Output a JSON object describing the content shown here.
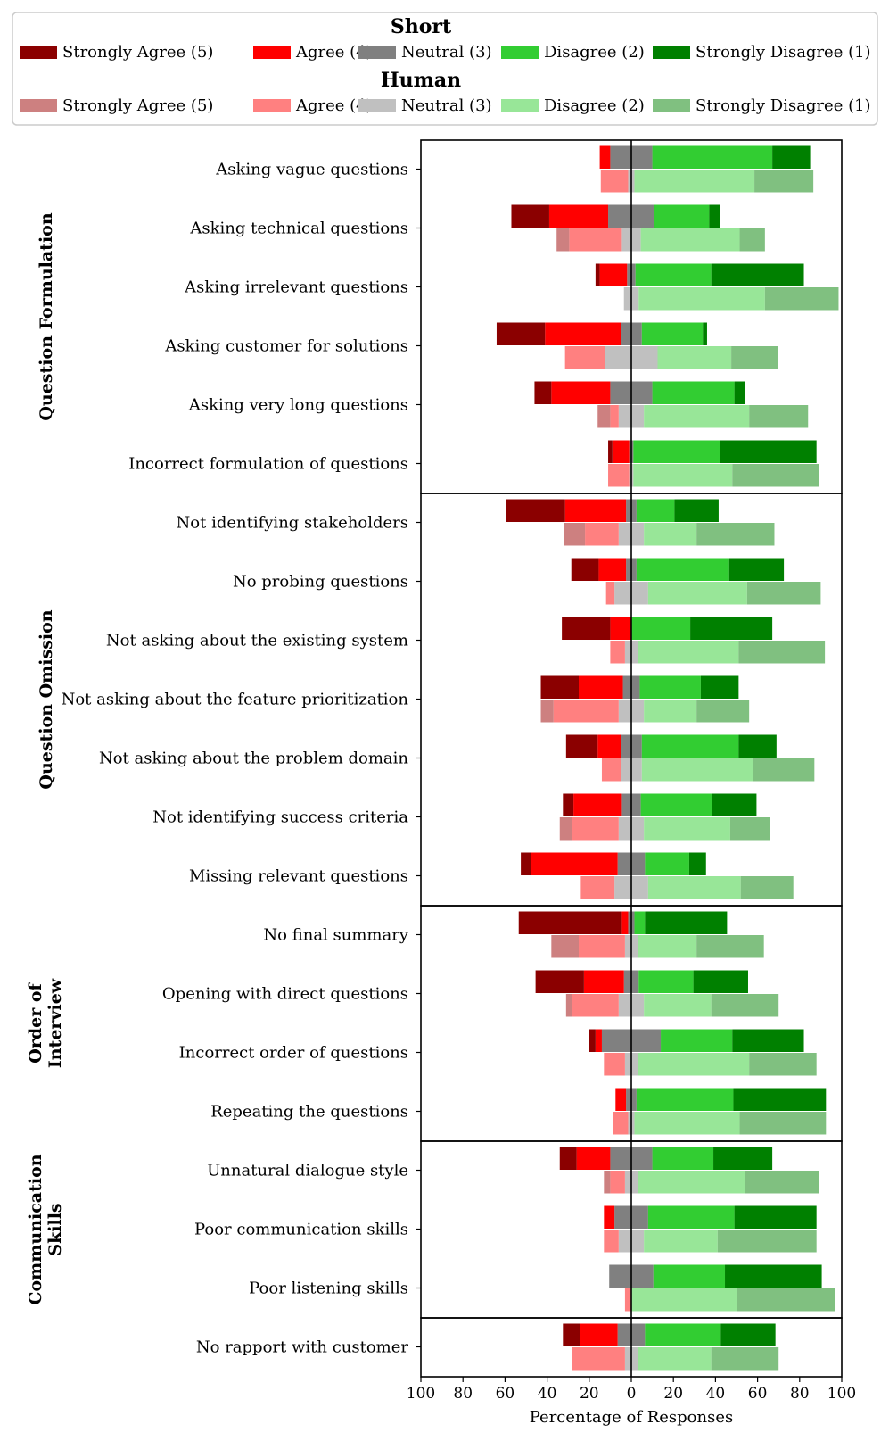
{
  "chart_data": {
    "type": "bar",
    "subtype": "diverging-stacked-horizontal",
    "xlabel": "Percentage of Responses",
    "xlim": [
      -100,
      100
    ],
    "xticks": [
      -100,
      -80,
      -60,
      -40,
      -20,
      0,
      20,
      40,
      60,
      80,
      100
    ],
    "xtick_labels": [
      "100",
      "80",
      "60",
      "40",
      "20",
      "0",
      "20",
      "40",
      "60",
      "80",
      "100"
    ],
    "legend": {
      "placement": "top",
      "groups": [
        {
          "title": "Short",
          "entries": [
            "Strongly Agree (5)",
            "Agree (4)",
            "Neutral (3)",
            "Disagree (2)",
            "Strongly Disagree (1)"
          ],
          "colors": [
            "#8b0000",
            "#ff0000",
            "#808080",
            "#32cd32",
            "#008000"
          ]
        },
        {
          "title": "Human",
          "entries": [
            "Strongly Agree (5)",
            "Agree (4)",
            "Neutral (3)",
            "Disagree (2)",
            "Strongly Disagree (1)"
          ],
          "colors": [
            "#cd8080",
            "#ff8080",
            "#c0c0c0",
            "#98e698",
            "#80c080"
          ]
        }
      ]
    },
    "series_order": [
      "Strongly Agree (5)",
      "Agree (4)",
      "Neutral (3)",
      "Disagree (2)",
      "Strongly Disagree (1)"
    ],
    "groups": [
      {
        "name": "Question Formulation",
        "name_lines": [
          "Question Formulation"
        ],
        "items": [
          {
            "label": "Asking vague questions",
            "short": [
              0,
              5,
              20,
              57,
              18
            ],
            "human": [
              0,
              13,
              3,
              57,
              28
            ]
          },
          {
            "label": "Asking technical questions",
            "short": [
              18,
              28,
              22,
              26,
              5
            ],
            "human": [
              6,
              25,
              9,
              47,
              12
            ]
          },
          {
            "label": "Asking irrelevant questions",
            "short": [
              2,
              13,
              4,
              36,
              44
            ],
            "human": [
              0,
              0,
              7,
              60,
              35
            ]
          },
          {
            "label": "Asking customer for solutions",
            "short": [
              23,
              36,
              10,
              29,
              2
            ],
            "human": [
              0,
              19,
              25,
              35,
              22
            ]
          },
          {
            "label": "Asking very long questions",
            "short": [
              8,
              28,
              20,
              39,
              5
            ],
            "human": [
              6,
              4,
              12,
              50,
              28
            ]
          },
          {
            "label": "Incorrect formulation of questions",
            "short": [
              2,
              8,
              2,
              41,
              46
            ],
            "human": [
              0,
              10,
              2,
              47,
              41
            ]
          }
        ]
      },
      {
        "name": "Question Omission",
        "name_lines": [
          "Question Omission"
        ],
        "items": [
          {
            "label": "Not identifying stakeholders",
            "short": [
              28,
              29,
              5,
              18,
              21
            ],
            "human": [
              10,
              16,
              12,
              25,
              37
            ]
          },
          {
            "label": "No probing questions",
            "short": [
              13,
              13,
              5,
              44,
              26
            ],
            "human": [
              0,
              4,
              16,
              47,
              35
            ]
          },
          {
            "label": "Not asking about the existing system",
            "short": [
              23,
              10,
              0,
              28,
              39
            ],
            "human": [
              0,
              7,
              6,
              48,
              41
            ]
          },
          {
            "label": "Not asking about the feature prioritization",
            "short": [
              18,
              21,
              8,
              29,
              18
            ],
            "human": [
              6,
              31,
              12,
              25,
              25
            ]
          },
          {
            "label": "Not asking about the problem domain",
            "short": [
              15,
              11,
              10,
              46,
              18
            ],
            "human": [
              0,
              9,
              10,
              53,
              29
            ]
          },
          {
            "label": "Not identifying success criteria",
            "short": [
              5,
              23,
              9,
              34,
              21
            ],
            "human": [
              6,
              22,
              12,
              41,
              19
            ]
          },
          {
            "label": "Missing relevant questions",
            "short": [
              5,
              41,
              13,
              21,
              8
            ],
            "human": [
              0,
              16,
              16,
              44,
              25
            ]
          }
        ]
      },
      {
        "name": "Order of Interview",
        "name_lines": [
          "Order of",
          "Interview"
        ],
        "items": [
          {
            "label": "No final summary",
            "short": [
              49,
              3,
              3,
              5,
              39
            ],
            "human": [
              13,
              22,
              6,
              28,
              32
            ]
          },
          {
            "label": "Opening with direct questions",
            "short": [
              23,
              19,
              7,
              26,
              26
            ],
            "human": [
              3,
              22,
              12,
              32,
              32
            ]
          },
          {
            "label": "Incorrect order of questions",
            "short": [
              3,
              3,
              28,
              34,
              34
            ],
            "human": [
              0,
              10,
              6,
              53,
              32
            ]
          },
          {
            "label": "Repeating the questions",
            "short": [
              0,
              5,
              5,
              46,
              44
            ],
            "human": [
              0,
              7,
              3,
              50,
              41
            ]
          }
        ]
      },
      {
        "name": "Communication Skills",
        "name_lines": [
          "Communication",
          "Skills"
        ],
        "items": [
          {
            "label": "Unnatural dialogue style",
            "short": [
              8,
              16,
              20,
              29,
              28
            ],
            "human": [
              3,
              7,
              6,
              51,
              35
            ]
          },
          {
            "label": "Poor communication skills",
            "short": [
              0,
              5,
              16,
              41,
              39
            ],
            "human": [
              0,
              7,
              12,
              35,
              47
            ]
          },
          {
            "label": "Poor listening skills",
            "short": [
              0,
              0,
              21,
              34,
              46
            ],
            "human": [
              0,
              3,
              0,
              50,
              47
            ]
          }
        ]
      },
      {
        "name": "",
        "name_lines": [],
        "items": [
          {
            "label": "No rapport with customer",
            "short": [
              8,
              18,
              13,
              36,
              26
            ],
            "human": [
              0,
              25,
              6,
              35,
              32
            ]
          }
        ]
      }
    ]
  }
}
